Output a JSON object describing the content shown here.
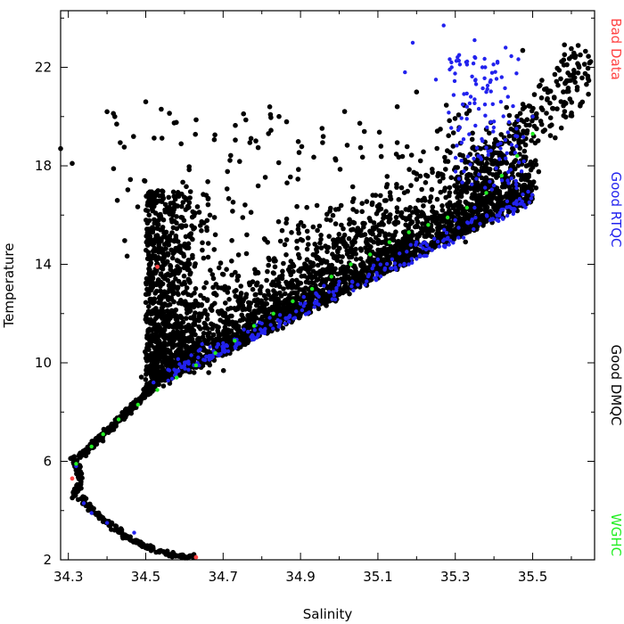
{
  "chart_data": {
    "type": "scatter",
    "title": "",
    "xlabel": "Salinity",
    "ylabel": "Temperature",
    "xlim": [
      34.28,
      35.66
    ],
    "ylim": [
      2,
      24.3
    ],
    "xticks": [
      "34.3",
      "34.5",
      "34.7",
      "34.9",
      "35.1",
      "35.3",
      "35.5"
    ],
    "yticks": [
      "2",
      "6",
      "10",
      "14",
      "18",
      "22"
    ],
    "grid": false,
    "legend_placement": "right-outside-vertical",
    "series": [
      {
        "name": "Bad Data",
        "color": "#ff4444",
        "points": [
          [
            34.63,
            2.1
          ],
          [
            34.53,
            13.9
          ],
          [
            34.31,
            5.3
          ]
        ]
      },
      {
        "name": "Good RTQC",
        "color": "#2222ee",
        "points": [
          [
            34.32,
            5.8
          ],
          [
            34.34,
            4.3
          ],
          [
            34.36,
            3.9
          ],
          [
            34.4,
            3.5
          ],
          [
            34.47,
            3.1
          ],
          [
            34.52,
            9.2
          ],
          [
            34.6,
            9.9
          ],
          [
            34.7,
            10.8
          ],
          [
            34.8,
            11.6
          ],
          [
            34.9,
            12.4
          ],
          [
            35.0,
            13.3
          ],
          [
            35.1,
            14.2
          ],
          [
            35.2,
            14.9
          ],
          [
            35.3,
            15.8
          ],
          [
            35.35,
            16.3
          ],
          [
            35.4,
            17.2
          ],
          [
            35.43,
            18.3
          ],
          [
            35.46,
            19.2
          ],
          [
            35.5,
            20.0
          ],
          [
            35.27,
            23.7
          ],
          [
            35.35,
            23.1
          ],
          [
            35.19,
            23.0
          ],
          [
            35.43,
            22.8
          ],
          [
            35.31,
            22.5
          ],
          [
            35.37,
            22.0
          ],
          [
            35.25,
            21.5
          ],
          [
            35.38,
            21.0
          ],
          [
            35.33,
            20.4
          ],
          [
            35.4,
            19.8
          ],
          [
            35.17,
            21.8
          ],
          [
            35.29,
            22.2
          ],
          [
            35.39,
            21.4
          ],
          [
            35.35,
            20.7
          ],
          [
            35.42,
            21.6
          ]
        ]
      },
      {
        "name": "Good DMQC",
        "color": "#000000",
        "points": []
      },
      {
        "name": "WGHC",
        "color": "#22ee22",
        "points": [
          [
            34.32,
            5.9
          ],
          [
            34.36,
            6.6
          ],
          [
            34.39,
            7.1
          ],
          [
            34.43,
            7.7
          ],
          [
            34.48,
            8.3
          ],
          [
            34.53,
            8.9
          ],
          [
            34.58,
            9.4
          ],
          [
            34.63,
            9.9
          ],
          [
            34.68,
            10.4
          ],
          [
            34.73,
            10.9
          ],
          [
            34.78,
            11.5
          ],
          [
            34.83,
            12.0
          ],
          [
            34.88,
            12.5
          ],
          [
            34.93,
            13.0
          ],
          [
            34.98,
            13.5
          ],
          [
            35.03,
            14.0
          ],
          [
            35.08,
            14.4
          ],
          [
            35.13,
            14.9
          ],
          [
            35.18,
            15.3
          ],
          [
            35.23,
            15.6
          ],
          [
            35.28,
            15.9
          ],
          [
            35.33,
            16.3
          ],
          [
            35.38,
            16.9
          ],
          [
            35.42,
            17.6
          ],
          [
            35.46,
            18.4
          ],
          [
            35.5,
            19.3
          ]
        ]
      }
    ]
  }
}
